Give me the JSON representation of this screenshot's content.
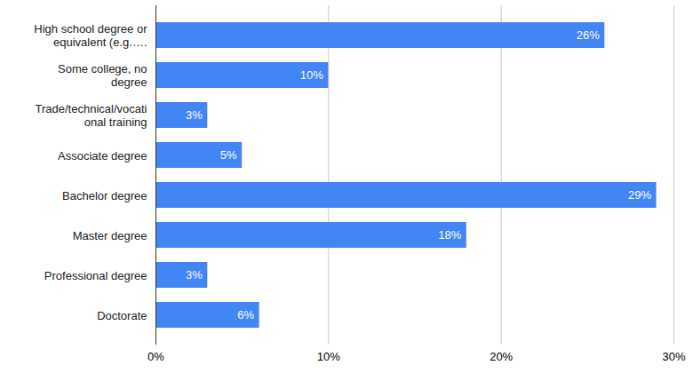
{
  "chart_data": {
    "type": "bar",
    "orientation": "horizontal",
    "categories": [
      "High school degree or equivalent (e.g.….",
      "Some college, no degree",
      "Trade/technical/vocational training",
      "Associate degree",
      "Bachelor degree",
      "Master degree",
      "Professional degree",
      "Doctorate"
    ],
    "values": [
      26,
      10,
      3,
      5,
      29,
      18,
      3,
      6
    ],
    "value_labels": [
      "26%",
      "10%",
      "3%",
      "5%",
      "29%",
      "18%",
      "3%",
      "6%"
    ],
    "data_labels": true,
    "color": "#4285f4",
    "xlim": [
      0,
      30
    ],
    "xticks": [
      {
        "value": 0,
        "label": "0%"
      },
      {
        "value": 10,
        "label": "10%"
      },
      {
        "value": 20,
        "label": "20%"
      },
      {
        "value": 30,
        "label": "30%"
      }
    ],
    "grid": true
  }
}
